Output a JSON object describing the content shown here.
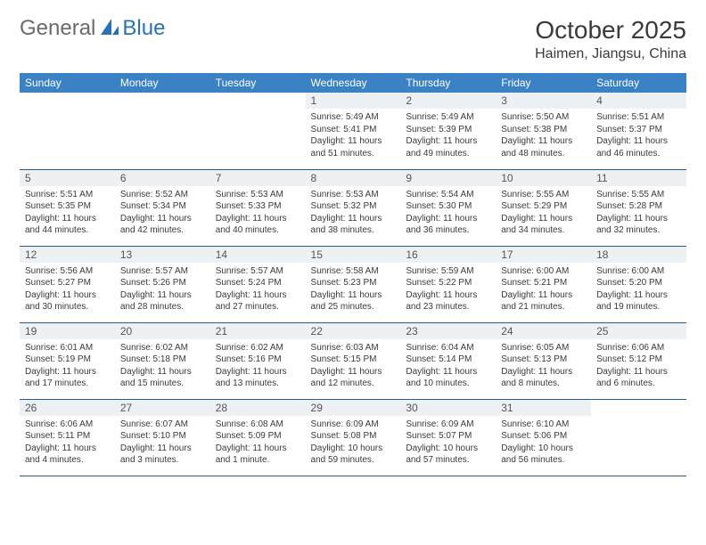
{
  "logo": {
    "general": "General",
    "blue": "Blue"
  },
  "title": "October 2025",
  "location": "Haimen, Jiangsu, China",
  "colors": {
    "header_bg": "#3b82c4",
    "header_text": "#ffffff",
    "daynum_bg": "#eef1f4",
    "row_border": "#2a5a8a",
    "logo_gray": "#6a6a6a",
    "logo_blue": "#2a72b5"
  },
  "weekdays": [
    "Sunday",
    "Monday",
    "Tuesday",
    "Wednesday",
    "Thursday",
    "Friday",
    "Saturday"
  ],
  "weeks": [
    [
      null,
      null,
      null,
      {
        "n": "1",
        "sr": "5:49 AM",
        "ss": "5:41 PM",
        "dl": "11 hours and 51 minutes."
      },
      {
        "n": "2",
        "sr": "5:49 AM",
        "ss": "5:39 PM",
        "dl": "11 hours and 49 minutes."
      },
      {
        "n": "3",
        "sr": "5:50 AM",
        "ss": "5:38 PM",
        "dl": "11 hours and 48 minutes."
      },
      {
        "n": "4",
        "sr": "5:51 AM",
        "ss": "5:37 PM",
        "dl": "11 hours and 46 minutes."
      }
    ],
    [
      {
        "n": "5",
        "sr": "5:51 AM",
        "ss": "5:35 PM",
        "dl": "11 hours and 44 minutes."
      },
      {
        "n": "6",
        "sr": "5:52 AM",
        "ss": "5:34 PM",
        "dl": "11 hours and 42 minutes."
      },
      {
        "n": "7",
        "sr": "5:53 AM",
        "ss": "5:33 PM",
        "dl": "11 hours and 40 minutes."
      },
      {
        "n": "8",
        "sr": "5:53 AM",
        "ss": "5:32 PM",
        "dl": "11 hours and 38 minutes."
      },
      {
        "n": "9",
        "sr": "5:54 AM",
        "ss": "5:30 PM",
        "dl": "11 hours and 36 minutes."
      },
      {
        "n": "10",
        "sr": "5:55 AM",
        "ss": "5:29 PM",
        "dl": "11 hours and 34 minutes."
      },
      {
        "n": "11",
        "sr": "5:55 AM",
        "ss": "5:28 PM",
        "dl": "11 hours and 32 minutes."
      }
    ],
    [
      {
        "n": "12",
        "sr": "5:56 AM",
        "ss": "5:27 PM",
        "dl": "11 hours and 30 minutes."
      },
      {
        "n": "13",
        "sr": "5:57 AM",
        "ss": "5:26 PM",
        "dl": "11 hours and 28 minutes."
      },
      {
        "n": "14",
        "sr": "5:57 AM",
        "ss": "5:24 PM",
        "dl": "11 hours and 27 minutes."
      },
      {
        "n": "15",
        "sr": "5:58 AM",
        "ss": "5:23 PM",
        "dl": "11 hours and 25 minutes."
      },
      {
        "n": "16",
        "sr": "5:59 AM",
        "ss": "5:22 PM",
        "dl": "11 hours and 23 minutes."
      },
      {
        "n": "17",
        "sr": "6:00 AM",
        "ss": "5:21 PM",
        "dl": "11 hours and 21 minutes."
      },
      {
        "n": "18",
        "sr": "6:00 AM",
        "ss": "5:20 PM",
        "dl": "11 hours and 19 minutes."
      }
    ],
    [
      {
        "n": "19",
        "sr": "6:01 AM",
        "ss": "5:19 PM",
        "dl": "11 hours and 17 minutes."
      },
      {
        "n": "20",
        "sr": "6:02 AM",
        "ss": "5:18 PM",
        "dl": "11 hours and 15 minutes."
      },
      {
        "n": "21",
        "sr": "6:02 AM",
        "ss": "5:16 PM",
        "dl": "11 hours and 13 minutes."
      },
      {
        "n": "22",
        "sr": "6:03 AM",
        "ss": "5:15 PM",
        "dl": "11 hours and 12 minutes."
      },
      {
        "n": "23",
        "sr": "6:04 AM",
        "ss": "5:14 PM",
        "dl": "11 hours and 10 minutes."
      },
      {
        "n": "24",
        "sr": "6:05 AM",
        "ss": "5:13 PM",
        "dl": "11 hours and 8 minutes."
      },
      {
        "n": "25",
        "sr": "6:06 AM",
        "ss": "5:12 PM",
        "dl": "11 hours and 6 minutes."
      }
    ],
    [
      {
        "n": "26",
        "sr": "6:06 AM",
        "ss": "5:11 PM",
        "dl": "11 hours and 4 minutes."
      },
      {
        "n": "27",
        "sr": "6:07 AM",
        "ss": "5:10 PM",
        "dl": "11 hours and 3 minutes."
      },
      {
        "n": "28",
        "sr": "6:08 AM",
        "ss": "5:09 PM",
        "dl": "11 hours and 1 minute."
      },
      {
        "n": "29",
        "sr": "6:09 AM",
        "ss": "5:08 PM",
        "dl": "10 hours and 59 minutes."
      },
      {
        "n": "30",
        "sr": "6:09 AM",
        "ss": "5:07 PM",
        "dl": "10 hours and 57 minutes."
      },
      {
        "n": "31",
        "sr": "6:10 AM",
        "ss": "5:06 PM",
        "dl": "10 hours and 56 minutes."
      },
      null
    ]
  ],
  "labels": {
    "sunrise": "Sunrise:",
    "sunset": "Sunset:",
    "daylight": "Daylight:"
  }
}
